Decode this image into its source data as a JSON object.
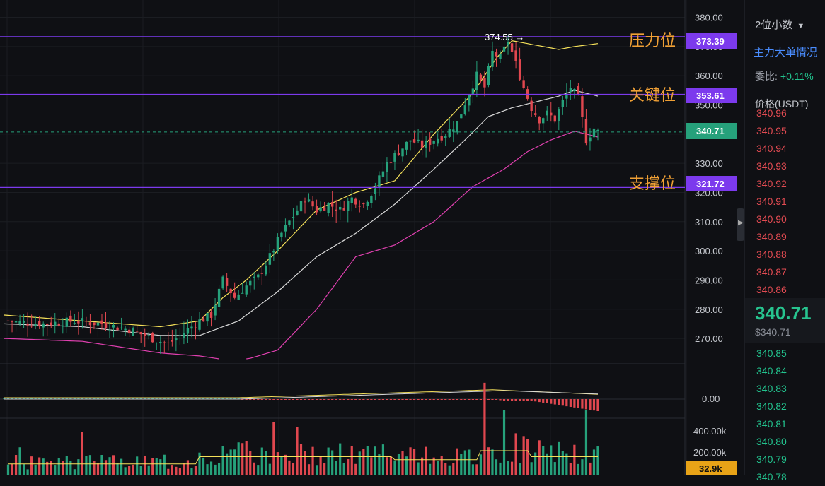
{
  "price_axis": {
    "ticks": [
      "380.00",
      "370.00",
      "360.00",
      "350.00",
      "340.00",
      "330.00",
      "320.00",
      "310.00",
      "300.00",
      "290.00",
      "280.00",
      "270.00"
    ]
  },
  "macd_axis": {
    "zero_label": "0.00"
  },
  "volume_axis": {
    "ticks": [
      "400.00k",
      "200.00k"
    ],
    "current_tag": "32.9k"
  },
  "levels": {
    "resistance": {
      "label": "压力位",
      "value": "373.39",
      "color": "#7c3aed"
    },
    "key": {
      "label": "关键位",
      "value": "353.61",
      "color": "#7c3aed"
    },
    "support": {
      "label": "支撑位",
      "value": "321.72",
      "color": "#7c3aed"
    },
    "current": {
      "value": "340.71",
      "color": "#26a17b"
    }
  },
  "high_marker": "374.55 →",
  "side_panel": {
    "decimals": "2位小数",
    "main_order": "主力大单情况",
    "weibi_label": "委比:",
    "weibi_value": "+0.11%",
    "price_header": "价格(USDT)",
    "asks": [
      "340.96",
      "340.95",
      "340.94",
      "340.93",
      "340.92",
      "340.91",
      "340.90",
      "340.89",
      "340.88",
      "340.87",
      "340.86"
    ],
    "last_price": "340.71",
    "last_price_usd": "$340.71",
    "bids": [
      "340.85",
      "340.84",
      "340.83",
      "340.82",
      "340.81",
      "340.80",
      "340.79",
      "340.78"
    ]
  },
  "colors": {
    "up": "#26a17b",
    "down": "#e0474f",
    "ma_short": "#f5e15a",
    "ma_mid": "#d9d9d9",
    "ma_long": "#e040b0"
  },
  "chart_data": {
    "type": "candlestick",
    "price_ylim": [
      263,
      384
    ],
    "key_points_close": [
      [
        0,
        276
      ],
      [
        10,
        275
      ],
      [
        18,
        276
      ],
      [
        25,
        275
      ],
      [
        32,
        273
      ],
      [
        38,
        270
      ],
      [
        42,
        268
      ],
      [
        46,
        272
      ],
      [
        50,
        276
      ],
      [
        53,
        278
      ],
      [
        56,
        290
      ],
      [
        59,
        284
      ],
      [
        62,
        288
      ],
      [
        65,
        291
      ],
      [
        68,
        298
      ],
      [
        71,
        306
      ],
      [
        74,
        312
      ],
      [
        77,
        318
      ],
      [
        80,
        314
      ],
      [
        83,
        316
      ],
      [
        86,
        314
      ],
      [
        89,
        318
      ],
      [
        92,
        316
      ],
      [
        95,
        322
      ],
      [
        98,
        330
      ],
      [
        101,
        334
      ],
      [
        104,
        338
      ],
      [
        107,
        336
      ],
      [
        110,
        338
      ],
      [
        113,
        340
      ],
      [
        116,
        344
      ],
      [
        119,
        354
      ],
      [
        121,
        360
      ],
      [
        123,
        356
      ],
      [
        125,
        368
      ],
      [
        127,
        366
      ],
      [
        129,
        372
      ],
      [
        131,
        364
      ],
      [
        133,
        356
      ],
      [
        135,
        349
      ],
      [
        137,
        345
      ],
      [
        139,
        347
      ],
      [
        141,
        345
      ],
      [
        143,
        351
      ],
      [
        145,
        356
      ],
      [
        147,
        352
      ],
      [
        149,
        338
      ],
      [
        151,
        342
      ],
      [
        152,
        340.71
      ]
    ],
    "ma_short": [
      [
        0,
        278
      ],
      [
        20,
        276
      ],
      [
        40,
        274
      ],
      [
        50,
        276
      ],
      [
        56,
        284
      ],
      [
        62,
        290
      ],
      [
        70,
        300
      ],
      [
        80,
        314
      ],
      [
        90,
        320
      ],
      [
        100,
        324
      ],
      [
        110,
        340
      ],
      [
        120,
        354
      ],
      [
        126,
        366
      ],
      [
        130,
        372
      ],
      [
        134,
        371
      ],
      [
        138,
        370
      ],
      [
        142,
        369
      ],
      [
        146,
        370
      ],
      [
        152,
        371
      ]
    ],
    "ma_mid": [
      [
        0,
        275
      ],
      [
        20,
        274
      ],
      [
        40,
        271
      ],
      [
        50,
        271
      ],
      [
        60,
        276
      ],
      [
        70,
        286
      ],
      [
        80,
        298
      ],
      [
        90,
        306
      ],
      [
        100,
        316
      ],
      [
        110,
        328
      ],
      [
        118,
        338
      ],
      [
        124,
        346
      ],
      [
        130,
        349
      ],
      [
        136,
        351
      ],
      [
        142,
        353
      ],
      [
        146,
        355
      ],
      [
        152,
        353
      ]
    ],
    "ma_long": [
      [
        0,
        270
      ],
      [
        20,
        269
      ],
      [
        40,
        265
      ],
      [
        50,
        264
      ],
      [
        60,
        262
      ],
      [
        70,
        266
      ],
      [
        80,
        280
      ],
      [
        90,
        298
      ],
      [
        100,
        302
      ],
      [
        110,
        310
      ],
      [
        120,
        322
      ],
      [
        128,
        328
      ],
      [
        134,
        334
      ],
      [
        140,
        338
      ],
      [
        146,
        341
      ],
      [
        152,
        339
      ]
    ]
  }
}
